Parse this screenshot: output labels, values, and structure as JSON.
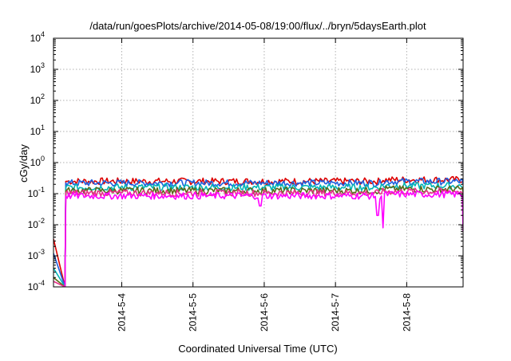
{
  "chart_data": {
    "type": "line",
    "title": "/data/run/goesPlots/archive/2014-05-08/19:00/flux/../bryn/5daysEarth.plot",
    "xlabel": "Coordinated Universal Time (UTC)",
    "ylabel": "cGy/day",
    "yscale": "log",
    "ylim": [
      0.0001,
      10000
    ],
    "y_ticks": [
      {
        "value": 0.0001,
        "base": "10",
        "exp": "-4"
      },
      {
        "value": 0.001,
        "base": "10",
        "exp": "-3"
      },
      {
        "value": 0.01,
        "base": "10",
        "exp": "-2"
      },
      {
        "value": 0.1,
        "base": "10",
        "exp": "-1"
      },
      {
        "value": 1,
        "base": "10",
        "exp": "0"
      },
      {
        "value": 10,
        "base": "10",
        "exp": "1"
      },
      {
        "value": 100,
        "base": "10",
        "exp": "2"
      },
      {
        "value": 1000,
        "base": "10",
        "exp": "3"
      },
      {
        "value": 10000,
        "base": "10",
        "exp": "4"
      }
    ],
    "xlim": [
      "2014-05-03T01:00",
      "2014-05-08T19:00"
    ],
    "x_ticks": [
      "2014-5-4",
      "2014-5-5",
      "2014-5-6",
      "2014-5-7",
      "2014-5-8"
    ],
    "grid": true,
    "legend": "none",
    "series": [
      {
        "color": "#dd0000",
        "baseline": 0.25,
        "start": 0.0035
      },
      {
        "color": "#1f5fe0",
        "baseline": 0.22,
        "start": 0.0012
      },
      {
        "color": "#00b5b5",
        "baseline": 0.16,
        "start": 0.0004
      },
      {
        "color": "#5a6a1a",
        "baseline": 0.125,
        "start": 0.0002
      },
      {
        "color": "#e8308a",
        "baseline": 0.105,
        "start": 0.00015
      },
      {
        "color": "#ff00ff",
        "baseline": 0.085,
        "start": 8e-05
      }
    ],
    "dips": [
      {
        "x": "2014-05-05T22:30",
        "value": 0.04
      },
      {
        "x": "2014-05-07T14:00",
        "value": 0.02
      },
      {
        "x": "2014-05-07T16:00",
        "value": 0.008
      }
    ]
  }
}
